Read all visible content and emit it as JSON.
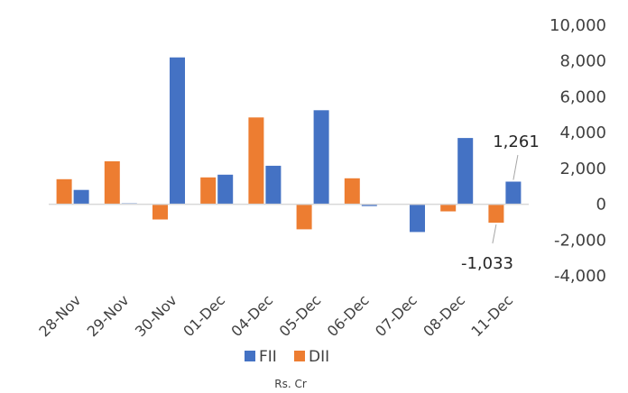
{
  "chart_data": {
    "type": "bar",
    "categories": [
      "28-Nov",
      "29-Nov",
      "30-Nov",
      "01-Dec",
      "04-Dec",
      "05-Dec",
      "06-Dec",
      "07-Dec",
      "08-Dec",
      "11-Dec"
    ],
    "series": [
      {
        "name": "DII",
        "color": "#ED7D31",
        "values": [
          1400,
          2400,
          -850,
          1500,
          4850,
          -1400,
          1450,
          0,
          -400,
          -1033
        ]
      },
      {
        "name": "FII",
        "color": "#4472C4",
        "values": [
          800,
          50,
          8200,
          1650,
          2150,
          5250,
          -100,
          -1550,
          3700,
          1261
        ]
      }
    ],
    "ylim": [
      -4000,
      10000
    ],
    "yticks": [
      -4000,
      -2000,
      0,
      2000,
      4000,
      6000,
      8000,
      10000
    ],
    "ytick_labels": [
      "-4,000",
      "-2,000",
      "0",
      "2,000",
      "4,000",
      "6,000",
      "8,000",
      "10,000"
    ],
    "data_labels": [
      {
        "series": "FII",
        "category": "11-Dec",
        "text": "1,261"
      },
      {
        "series": "DII",
        "category": "11-Dec",
        "text": "-1,033"
      }
    ],
    "legend": {
      "position": "bottom",
      "items": [
        "FII",
        "DII"
      ]
    },
    "unit_label": "Rs. Cr",
    "grid": false
  }
}
